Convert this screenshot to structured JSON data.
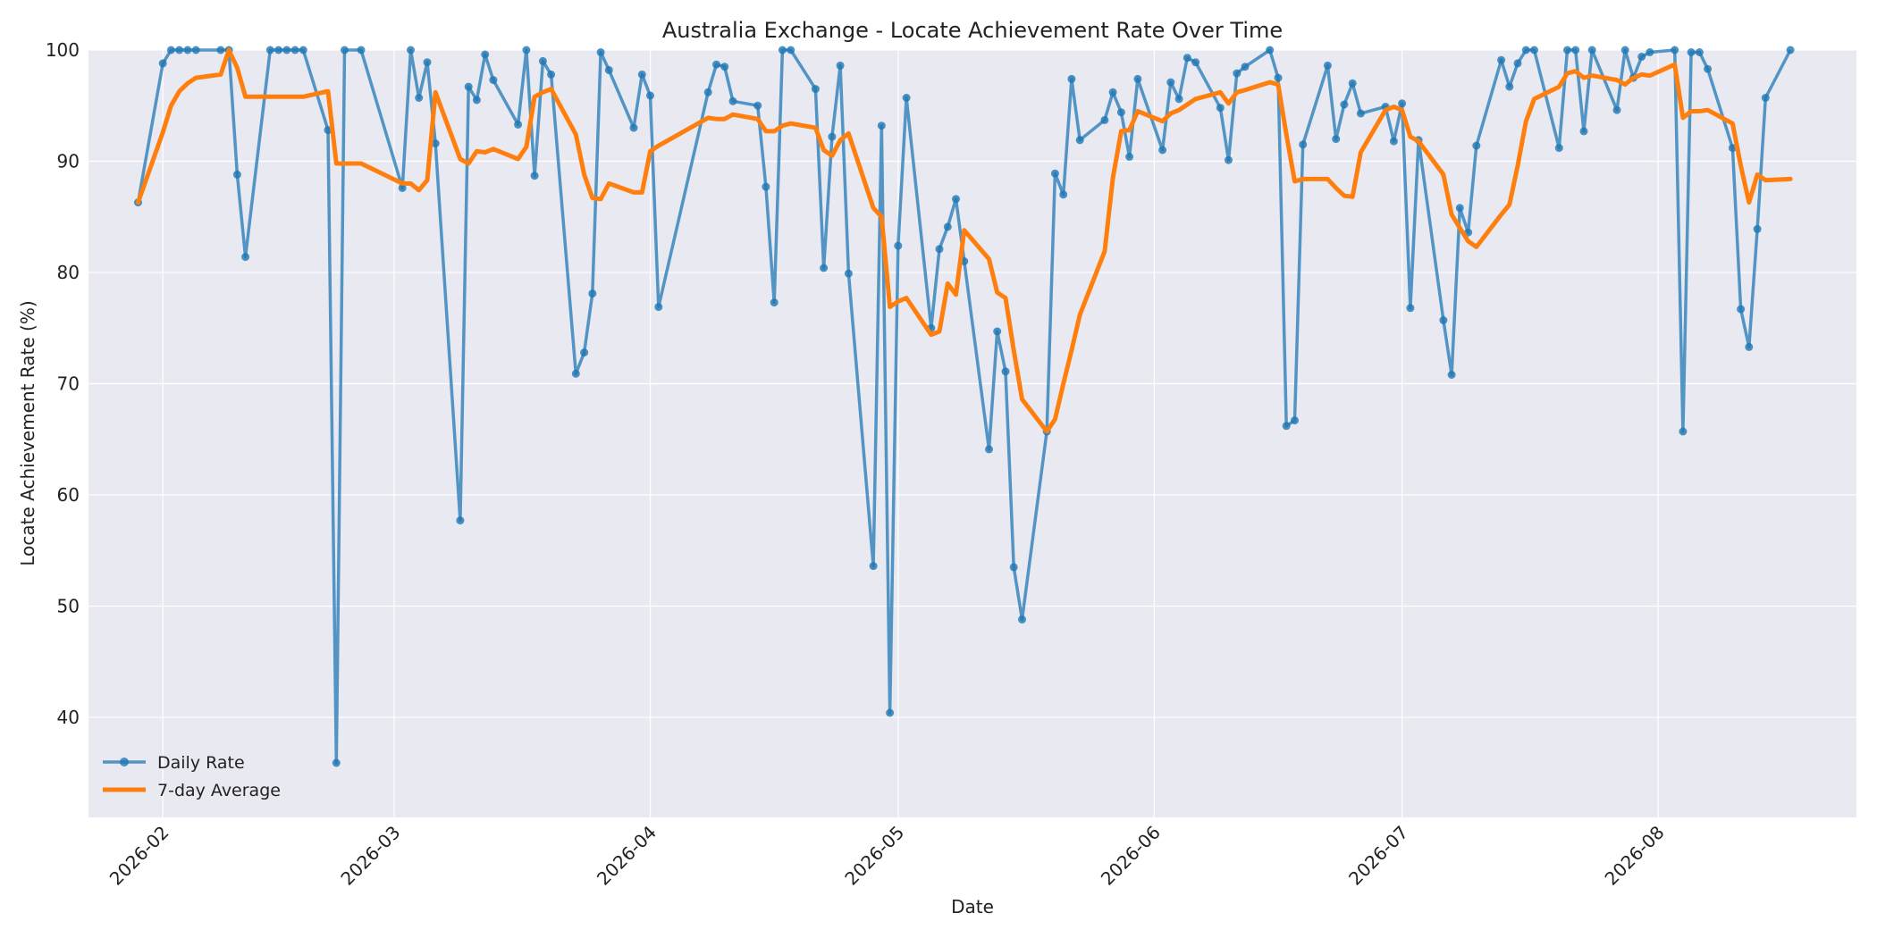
{
  "chart_data": {
    "type": "line",
    "title": "Australia Exchange - Locate Achievement Rate Over Time",
    "xlabel": "Date",
    "ylabel": "Locate Achievement Rate (%)",
    "ylim": [
      31,
      100
    ],
    "xlim": [
      "2026-01-23",
      "2026-08-25"
    ],
    "y_ticks": [
      40,
      50,
      60,
      70,
      80,
      90,
      100
    ],
    "x_ticks": [
      "2026-02",
      "2026-03",
      "2026-04",
      "2026-05",
      "2026-06",
      "2026-07",
      "2026-08"
    ],
    "grid": true,
    "legend_position": "bottom-left",
    "series": [
      {
        "name": "Daily Rate",
        "color": "#1f77b4",
        "marker": "circle",
        "points": [
          [
            "2026-01-29",
            86.3
          ],
          [
            "2026-02-01",
            98.8
          ],
          [
            "2026-02-02",
            100
          ],
          [
            "2026-02-03",
            100
          ],
          [
            "2026-02-04",
            100
          ],
          [
            "2026-02-05",
            100
          ],
          [
            "2026-02-08",
            100
          ],
          [
            "2026-02-09",
            100
          ],
          [
            "2026-02-10",
            88.8
          ],
          [
            "2026-02-11",
            81.4
          ],
          [
            "2026-02-14",
            100
          ],
          [
            "2026-02-15",
            100
          ],
          [
            "2026-02-16",
            100
          ],
          [
            "2026-02-17",
            100
          ],
          [
            "2026-02-18",
            100
          ],
          [
            "2026-02-21",
            92.8
          ],
          [
            "2026-02-22",
            35.9
          ],
          [
            "2026-02-23",
            100
          ],
          [
            "2026-02-25",
            100
          ],
          [
            "2026-03-02",
            87.6
          ],
          [
            "2026-03-03",
            100
          ],
          [
            "2026-03-04",
            95.7
          ],
          [
            "2026-03-05",
            98.9
          ],
          [
            "2026-03-06",
            91.6
          ],
          [
            "2026-03-09",
            57.7
          ],
          [
            "2026-03-10",
            96.7
          ],
          [
            "2026-03-11",
            95.5
          ],
          [
            "2026-03-12",
            99.6
          ],
          [
            "2026-03-13",
            97.3
          ],
          [
            "2026-03-16",
            93.3
          ],
          [
            "2026-03-17",
            100
          ],
          [
            "2026-03-18",
            88.7
          ],
          [
            "2026-03-19",
            99
          ],
          [
            "2026-03-20",
            97.8
          ],
          [
            "2026-03-23",
            70.9
          ],
          [
            "2026-03-24",
            72.8
          ],
          [
            "2026-03-25",
            78.1
          ],
          [
            "2026-03-26",
            99.8
          ],
          [
            "2026-03-27",
            98.2
          ],
          [
            "2026-03-30",
            93
          ],
          [
            "2026-03-31",
            97.8
          ],
          [
            "2026-04-01",
            95.9
          ],
          [
            "2026-04-02",
            76.9
          ],
          [
            "2026-04-08",
            96.2
          ],
          [
            "2026-04-09",
            98.7
          ],
          [
            "2026-04-10",
            98.5
          ],
          [
            "2026-04-11",
            95.4
          ],
          [
            "2026-04-14",
            95
          ],
          [
            "2026-04-15",
            87.7
          ],
          [
            "2026-04-16",
            77.3
          ],
          [
            "2026-04-17",
            100
          ],
          [
            "2026-04-18",
            100
          ],
          [
            "2026-04-21",
            96.5
          ],
          [
            "2026-04-22",
            80.4
          ],
          [
            "2026-04-23",
            92.2
          ],
          [
            "2026-04-24",
            98.6
          ],
          [
            "2026-04-25",
            79.9
          ],
          [
            "2026-04-28",
            53.6
          ],
          [
            "2026-04-29",
            93.2
          ],
          [
            "2026-04-30",
            40.4
          ],
          [
            "2026-05-01",
            82.4
          ],
          [
            "2026-05-02",
            95.7
          ],
          [
            "2026-05-05",
            75
          ],
          [
            "2026-05-06",
            82.1
          ],
          [
            "2026-05-07",
            84.1
          ],
          [
            "2026-05-08",
            86.6
          ],
          [
            "2026-05-09",
            81
          ],
          [
            "2026-05-12",
            64.1
          ],
          [
            "2026-05-13",
            74.7
          ],
          [
            "2026-05-14",
            71.1
          ],
          [
            "2026-05-15",
            53.5
          ],
          [
            "2026-05-16",
            48.8
          ],
          [
            "2026-05-19",
            65.7
          ],
          [
            "2026-05-20",
            88.9
          ],
          [
            "2026-05-21",
            87
          ],
          [
            "2026-05-22",
            97.4
          ],
          [
            "2026-05-23",
            91.9
          ],
          [
            "2026-05-26",
            93.7
          ],
          [
            "2026-05-27",
            96.2
          ],
          [
            "2026-05-28",
            94.4
          ],
          [
            "2026-05-29",
            90.4
          ],
          [
            "2026-05-30",
            97.4
          ],
          [
            "2026-06-02",
            91
          ],
          [
            "2026-06-03",
            97.1
          ],
          [
            "2026-06-04",
            95.6
          ],
          [
            "2026-06-05",
            99.3
          ],
          [
            "2026-06-06",
            98.9
          ],
          [
            "2026-06-09",
            94.8
          ],
          [
            "2026-06-10",
            90.1
          ],
          [
            "2026-06-11",
            97.9
          ],
          [
            "2026-06-12",
            98.5
          ],
          [
            "2026-06-15",
            100
          ],
          [
            "2026-06-16",
            97.5
          ],
          [
            "2026-06-17",
            66.2
          ],
          [
            "2026-06-18",
            66.7
          ],
          [
            "2026-06-19",
            91.5
          ],
          [
            "2026-06-22",
            98.6
          ],
          [
            "2026-06-23",
            92
          ],
          [
            "2026-06-24",
            95.1
          ],
          [
            "2026-06-25",
            97
          ],
          [
            "2026-06-26",
            94.3
          ],
          [
            "2026-06-29",
            94.9
          ],
          [
            "2026-06-30",
            91.8
          ],
          [
            "2026-07-01",
            95.2
          ],
          [
            "2026-07-02",
            76.8
          ],
          [
            "2026-07-03",
            91.9
          ],
          [
            "2026-07-06",
            75.7
          ],
          [
            "2026-07-07",
            70.8
          ],
          [
            "2026-07-08",
            85.8
          ],
          [
            "2026-07-09",
            83.6
          ],
          [
            "2026-07-10",
            91.4
          ],
          [
            "2026-07-13",
            99.1
          ],
          [
            "2026-07-14",
            96.7
          ],
          [
            "2026-07-15",
            98.8
          ],
          [
            "2026-07-16",
            100
          ],
          [
            "2026-07-17",
            100
          ],
          [
            "2026-07-20",
            91.2
          ],
          [
            "2026-07-21",
            100
          ],
          [
            "2026-07-22",
            100
          ],
          [
            "2026-07-23",
            92.7
          ],
          [
            "2026-07-24",
            100
          ],
          [
            "2026-07-27",
            94.6
          ],
          [
            "2026-07-28",
            100
          ],
          [
            "2026-07-29",
            97.5
          ],
          [
            "2026-07-30",
            99.4
          ],
          [
            "2026-07-31",
            99.8
          ],
          [
            "2026-08-03",
            100
          ],
          [
            "2026-08-04",
            65.7
          ],
          [
            "2026-08-05",
            99.8
          ],
          [
            "2026-08-06",
            99.8
          ],
          [
            "2026-08-07",
            98.3
          ],
          [
            "2026-08-10",
            91.2
          ],
          [
            "2026-08-11",
            76.7
          ],
          [
            "2026-08-12",
            73.3
          ],
          [
            "2026-08-13",
            83.9
          ],
          [
            "2026-08-14",
            95.7
          ],
          [
            "2026-08-17",
            100
          ]
        ]
      },
      {
        "name": "7-day Average",
        "color": "#ff7f0e",
        "points": [
          [
            "2026-01-29",
            86.3
          ],
          [
            "2026-02-01",
            92.6
          ],
          [
            "2026-02-02",
            95.0
          ],
          [
            "2026-02-03",
            96.3
          ],
          [
            "2026-02-04",
            97.0
          ],
          [
            "2026-02-05",
            97.5
          ],
          [
            "2026-02-08",
            97.8
          ],
          [
            "2026-02-09",
            100
          ],
          [
            "2026-02-10",
            98.4
          ],
          [
            "2026-02-11",
            95.8
          ],
          [
            "2026-02-14",
            95.8
          ],
          [
            "2026-02-15",
            95.8
          ],
          [
            "2026-02-16",
            95.8
          ],
          [
            "2026-02-17",
            95.8
          ],
          [
            "2026-02-18",
            95.8
          ],
          [
            "2026-02-21",
            96.3
          ],
          [
            "2026-02-22",
            89.8
          ],
          [
            "2026-02-23",
            89.8
          ],
          [
            "2026-02-25",
            89.8
          ],
          [
            "2026-03-02",
            88.0
          ],
          [
            "2026-03-03",
            88.0
          ],
          [
            "2026-03-04",
            87.4
          ],
          [
            "2026-03-05",
            88.3
          ],
          [
            "2026-03-06",
            96.2
          ],
          [
            "2026-03-09",
            90.2
          ],
          [
            "2026-03-10",
            89.8
          ],
          [
            "2026-03-11",
            90.9
          ],
          [
            "2026-03-12",
            90.8
          ],
          [
            "2026-03-13",
            91.1
          ],
          [
            "2026-03-16",
            90.2
          ],
          [
            "2026-03-17",
            91.3
          ],
          [
            "2026-03-18",
            95.8
          ],
          [
            "2026-03-19",
            96.2
          ],
          [
            "2026-03-20",
            96.5
          ],
          [
            "2026-03-23",
            92.4
          ],
          [
            "2026-03-24",
            88.8
          ],
          [
            "2026-03-25",
            86.7
          ],
          [
            "2026-03-26",
            86.6
          ],
          [
            "2026-03-27",
            88.0
          ],
          [
            "2026-03-30",
            87.2
          ],
          [
            "2026-03-31",
            87.2
          ],
          [
            "2026-04-01",
            90.9
          ],
          [
            "2026-04-02",
            91.4
          ],
          [
            "2026-04-08",
            93.9
          ],
          [
            "2026-04-09",
            93.8
          ],
          [
            "2026-04-10",
            93.8
          ],
          [
            "2026-04-11",
            94.2
          ],
          [
            "2026-04-14",
            93.8
          ],
          [
            "2026-04-15",
            92.7
          ],
          [
            "2026-04-16",
            92.7
          ],
          [
            "2026-04-17",
            93.2
          ],
          [
            "2026-04-18",
            93.4
          ],
          [
            "2026-04-21",
            93.0
          ],
          [
            "2026-04-22",
            91.0
          ],
          [
            "2026-04-23",
            90.5
          ],
          [
            "2026-04-24",
            91.9
          ],
          [
            "2026-04-25",
            92.5
          ],
          [
            "2026-04-28",
            85.8
          ],
          [
            "2026-04-29",
            85.0
          ],
          [
            "2026-04-30",
            76.9
          ],
          [
            "2026-05-01",
            77.4
          ],
          [
            "2026-05-02",
            77.7
          ],
          [
            "2026-05-05",
            74.4
          ],
          [
            "2026-05-06",
            74.7
          ],
          [
            "2026-05-07",
            79.0
          ],
          [
            "2026-05-08",
            78.0
          ],
          [
            "2026-05-09",
            83.8
          ],
          [
            "2026-05-12",
            81.2
          ],
          [
            "2026-05-13",
            78.2
          ],
          [
            "2026-05-14",
            77.7
          ],
          [
            "2026-05-15",
            73.0
          ],
          [
            "2026-05-16",
            68.6
          ],
          [
            "2026-05-19",
            65.7
          ],
          [
            "2026-05-20",
            66.8
          ],
          [
            "2026-05-21",
            70.0
          ],
          [
            "2026-05-22",
            73.0
          ],
          [
            "2026-05-23",
            76.2
          ],
          [
            "2026-05-26",
            81.9
          ],
          [
            "2026-05-27",
            88.5
          ],
          [
            "2026-05-28",
            92.7
          ],
          [
            "2026-05-29",
            92.8
          ],
          [
            "2026-05-30",
            94.5
          ],
          [
            "2026-06-02",
            93.6
          ],
          [
            "2026-06-03",
            94.3
          ],
          [
            "2026-06-04",
            94.6
          ],
          [
            "2026-06-05",
            95.1
          ],
          [
            "2026-06-06",
            95.6
          ],
          [
            "2026-06-09",
            96.2
          ],
          [
            "2026-06-10",
            95.2
          ],
          [
            "2026-06-11",
            96.2
          ],
          [
            "2026-06-12",
            96.4
          ],
          [
            "2026-06-15",
            97.1
          ],
          [
            "2026-06-16",
            96.9
          ],
          [
            "2026-06-17",
            92.4
          ],
          [
            "2026-06-18",
            88.2
          ],
          [
            "2026-06-19",
            88.4
          ],
          [
            "2026-06-22",
            88.4
          ],
          [
            "2026-06-23",
            87.6
          ],
          [
            "2026-06-24",
            86.9
          ],
          [
            "2026-06-25",
            86.8
          ],
          [
            "2026-06-26",
            90.8
          ],
          [
            "2026-06-29",
            94.6
          ],
          [
            "2026-06-30",
            94.9
          ],
          [
            "2026-07-01",
            94.6
          ],
          [
            "2026-07-02",
            92.2
          ],
          [
            "2026-07-03",
            91.8
          ],
          [
            "2026-07-06",
            88.8
          ],
          [
            "2026-07-07",
            85.2
          ],
          [
            "2026-07-08",
            84.0
          ],
          [
            "2026-07-09",
            82.8
          ],
          [
            "2026-07-10",
            82.3
          ],
          [
            "2026-07-13",
            85.2
          ],
          [
            "2026-07-14",
            86.1
          ],
          [
            "2026-07-15",
            89.6
          ],
          [
            "2026-07-16",
            93.6
          ],
          [
            "2026-07-17",
            95.6
          ],
          [
            "2026-07-20",
            96.7
          ],
          [
            "2026-07-21",
            97.9
          ],
          [
            "2026-07-22",
            98.1
          ],
          [
            "2026-07-23",
            97.5
          ],
          [
            "2026-07-24",
            97.7
          ],
          [
            "2026-07-27",
            97.3
          ],
          [
            "2026-07-28",
            96.9
          ],
          [
            "2026-07-29",
            97.5
          ],
          [
            "2026-07-30",
            97.8
          ],
          [
            "2026-07-31",
            97.7
          ],
          [
            "2026-08-03",
            98.7
          ],
          [
            "2026-08-04",
            93.9
          ],
          [
            "2026-08-05",
            94.5
          ],
          [
            "2026-08-06",
            94.5
          ],
          [
            "2026-08-07",
            94.6
          ],
          [
            "2026-08-10",
            93.4
          ],
          [
            "2026-08-11",
            89.6
          ],
          [
            "2026-08-12",
            86.3
          ],
          [
            "2026-08-13",
            88.8
          ],
          [
            "2026-08-14",
            88.3
          ],
          [
            "2026-08-17",
            88.4
          ]
        ]
      }
    ]
  }
}
